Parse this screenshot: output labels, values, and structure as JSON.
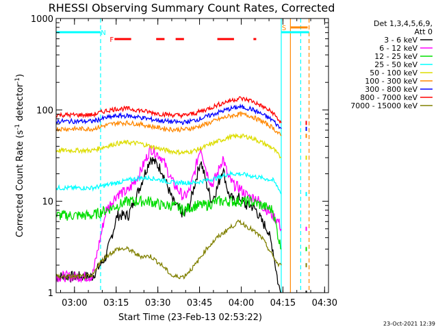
{
  "chart_data": {
    "type": "line",
    "title": "RHESSI Observing Summary Count Rates, Corrected",
    "xlabel": "Start Time (23-Feb-13 02:53:22)",
    "ylabel": "Corrected Count Rate (s^-1 detector^-1)",
    "ylabel_main": "Corrected Count Rate (s",
    "ylabel_sup1": "-1",
    "ylabel_mid": " detector",
    "ylabel_sup2": "-1",
    "ylabel_end": ")",
    "yscale": "log",
    "ylim": [
      1,
      1000
    ],
    "xlim_minutes": [
      0,
      98
    ],
    "x_tick_labels": [
      "03:00",
      "03:15",
      "03:30",
      "03:45",
      "04:00",
      "04:15",
      "04:30"
    ],
    "x_tick_minutes": [
      6.6,
      21.6,
      36.6,
      51.6,
      66.6,
      81.6,
      96.6
    ],
    "y_tick_labels": [
      "1",
      "10",
      "100",
      "1000"
    ],
    "y_tick_values": [
      1,
      10,
      100,
      1000
    ],
    "grid": false,
    "legend_position": "top-right outside",
    "legend_title": [
      "Det 1,3,4,5,6,9,",
      "Att 0"
    ],
    "series": [
      {
        "name": "3 - 6 keV",
        "color": "#000000",
        "x": [
          0,
          13,
          18,
          22,
          26,
          30,
          34,
          38,
          42,
          46,
          48,
          50,
          52,
          54,
          56,
          58,
          60,
          62,
          64,
          66,
          68,
          70,
          72,
          74,
          76,
          78,
          80,
          81
        ],
        "values": [
          1.5,
          1.5,
          2.5,
          7,
          7,
          14,
          30,
          22,
          10,
          7,
          9,
          16,
          28,
          16,
          10,
          14,
          23,
          12,
          10,
          11,
          9,
          9,
          8,
          6,
          5,
          3,
          1.2,
          1
        ]
      },
      {
        "name": "6 - 12 keV",
        "color": "#ff00ff",
        "x": [
          0,
          13,
          18,
          22,
          26,
          30,
          34,
          38,
          42,
          46,
          48,
          50,
          52,
          54,
          56,
          58,
          60,
          62,
          64,
          66,
          68,
          70,
          72,
          74,
          76,
          78,
          80,
          81
        ],
        "values": [
          1.5,
          1.5,
          8,
          12,
          13,
          20,
          38,
          30,
          16,
          11,
          13,
          22,
          40,
          22,
          15,
          20,
          30,
          18,
          15,
          14,
          12,
          11,
          11,
          9,
          8,
          7,
          6,
          5
        ]
      },
      {
        "name": "12 - 25 keV",
        "color": "#00dd00",
        "x": [
          0,
          13,
          18,
          22,
          26,
          30,
          34,
          38,
          42,
          46,
          50,
          54,
          58,
          62,
          66,
          70,
          74,
          78,
          80,
          81
        ],
        "values": [
          7,
          7,
          8,
          9,
          10,
          10,
          10,
          9,
          9,
          8,
          9,
          9,
          10,
          10,
          10,
          10,
          9,
          8,
          4,
          3
        ]
      },
      {
        "name": "25 - 50 keV",
        "color": "#00ffff",
        "x": [
          0,
          13,
          18,
          22,
          26,
          30,
          34,
          38,
          42,
          46,
          50,
          54,
          58,
          62,
          66,
          70,
          74,
          78,
          80,
          81
        ],
        "values": [
          14,
          14,
          15,
          16,
          17,
          18,
          18,
          17,
          16,
          16,
          16,
          17,
          18,
          20,
          20,
          19,
          18,
          17,
          14,
          12
        ]
      },
      {
        "name": "50 - 100 keV",
        "color": "#dddd00",
        "x": [
          0,
          13,
          18,
          22,
          26,
          30,
          34,
          38,
          42,
          46,
          50,
          54,
          58,
          62,
          66,
          70,
          74,
          78,
          80,
          81
        ],
        "values": [
          36,
          36,
          40,
          43,
          44,
          43,
          40,
          37,
          35,
          34,
          36,
          40,
          45,
          50,
          52,
          50,
          44,
          38,
          32,
          30
        ]
      },
      {
        "name": "100 - 300 keV",
        "color": "#ff8800",
        "x": [
          0,
          13,
          18,
          22,
          26,
          30,
          34,
          38,
          42,
          46,
          50,
          54,
          58,
          62,
          66,
          70,
          74,
          78,
          80,
          81
        ],
        "values": [
          62,
          62,
          68,
          72,
          72,
          70,
          66,
          63,
          61,
          61,
          64,
          70,
          78,
          85,
          90,
          86,
          75,
          64,
          55,
          52
        ]
      },
      {
        "name": "300 - 800 keV",
        "color": "#0000ff",
        "x": [
          0,
          13,
          18,
          22,
          26,
          30,
          34,
          38,
          42,
          46,
          50,
          54,
          58,
          62,
          66,
          70,
          74,
          78,
          80,
          81
        ],
        "values": [
          75,
          75,
          82,
          86,
          86,
          83,
          79,
          76,
          74,
          73,
          77,
          84,
          93,
          102,
          108,
          103,
          90,
          77,
          66,
          62
        ]
      },
      {
        "name": "800 - 7000 keV",
        "color": "#ff0000",
        "x": [
          0,
          13,
          18,
          22,
          26,
          30,
          34,
          38,
          42,
          46,
          50,
          54,
          58,
          62,
          66,
          70,
          74,
          78,
          80,
          81
        ],
        "values": [
          88,
          88,
          98,
          103,
          103,
          99,
          94,
          90,
          88,
          87,
          92,
          101,
          113,
          125,
          134,
          127,
          110,
          93,
          78,
          72
        ]
      },
      {
        "name": "7000 - 15000 keV",
        "color": "#808000",
        "x": [
          0,
          13,
          15,
          18,
          22,
          26,
          30,
          34,
          38,
          42,
          46,
          50,
          54,
          58,
          62,
          66,
          70,
          74,
          78,
          80,
          81
        ],
        "values": [
          1.5,
          1.5,
          2,
          2.5,
          3,
          3,
          2.5,
          2.5,
          2,
          1.5,
          1.5,
          2,
          3,
          4,
          5,
          6,
          5,
          4,
          2.5,
          2,
          2
        ]
      }
    ],
    "vertical_lines": [
      {
        "minute": 16,
        "color": "#00ffff",
        "style": "dashed"
      },
      {
        "minute": 81,
        "color": "#00ffff",
        "style": "solid"
      },
      {
        "minute": 88,
        "color": "#00ffff",
        "style": "dashed"
      },
      {
        "minute": 84.3,
        "color": "#ff8800",
        "style": "solid"
      },
      {
        "minute": 91,
        "color": "#ff8800",
        "style": "dashed"
      }
    ],
    "flags": [
      {
        "label": "N",
        "color": "#00ffff"
      },
      {
        "label": "F",
        "color": "#ff0000"
      },
      {
        "label": "S",
        "color": "#ff8800"
      }
    ]
  },
  "footer_date": "23-Oct-2021 12:39"
}
